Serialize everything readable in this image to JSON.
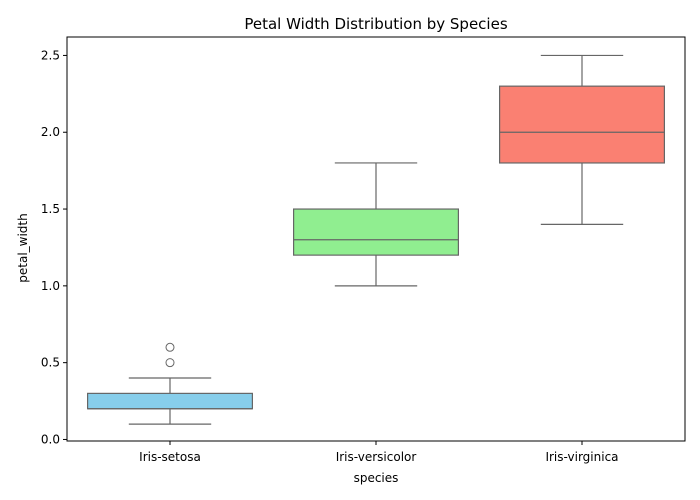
{
  "chart_data": {
    "type": "box",
    "title": "Petal Width Distribution by Species",
    "xlabel": "species",
    "ylabel": "petal_width",
    "ylim": [
      -0.01,
      2.62
    ],
    "yticks": [
      0.0,
      0.5,
      1.0,
      1.5,
      2.0,
      2.5
    ],
    "ytick_labels": [
      "0.0",
      "0.5",
      "1.0",
      "1.5",
      "2.0",
      "2.5"
    ],
    "grid": false,
    "categories": [
      "Iris-setosa",
      "Iris-versicolor",
      "Iris-virginica"
    ],
    "boxes": [
      {
        "category": "Iris-setosa",
        "whisker_low": 0.1,
        "q1": 0.2,
        "median": 0.2,
        "q3": 0.3,
        "whisker_high": 0.4,
        "outliers": [
          0.5,
          0.6
        ],
        "color": "#87CEEB"
      },
      {
        "category": "Iris-versicolor",
        "whisker_low": 1.0,
        "q1": 1.2,
        "median": 1.3,
        "q3": 1.5,
        "whisker_high": 1.8,
        "outliers": [],
        "color": "#90EE90"
      },
      {
        "category": "Iris-virginica",
        "whisker_low": 1.4,
        "q1": 1.8,
        "median": 2.0,
        "q3": 2.3,
        "whisker_high": 2.5,
        "outliers": [],
        "color": "#FA8072"
      }
    ],
    "line_color": "#666666"
  }
}
